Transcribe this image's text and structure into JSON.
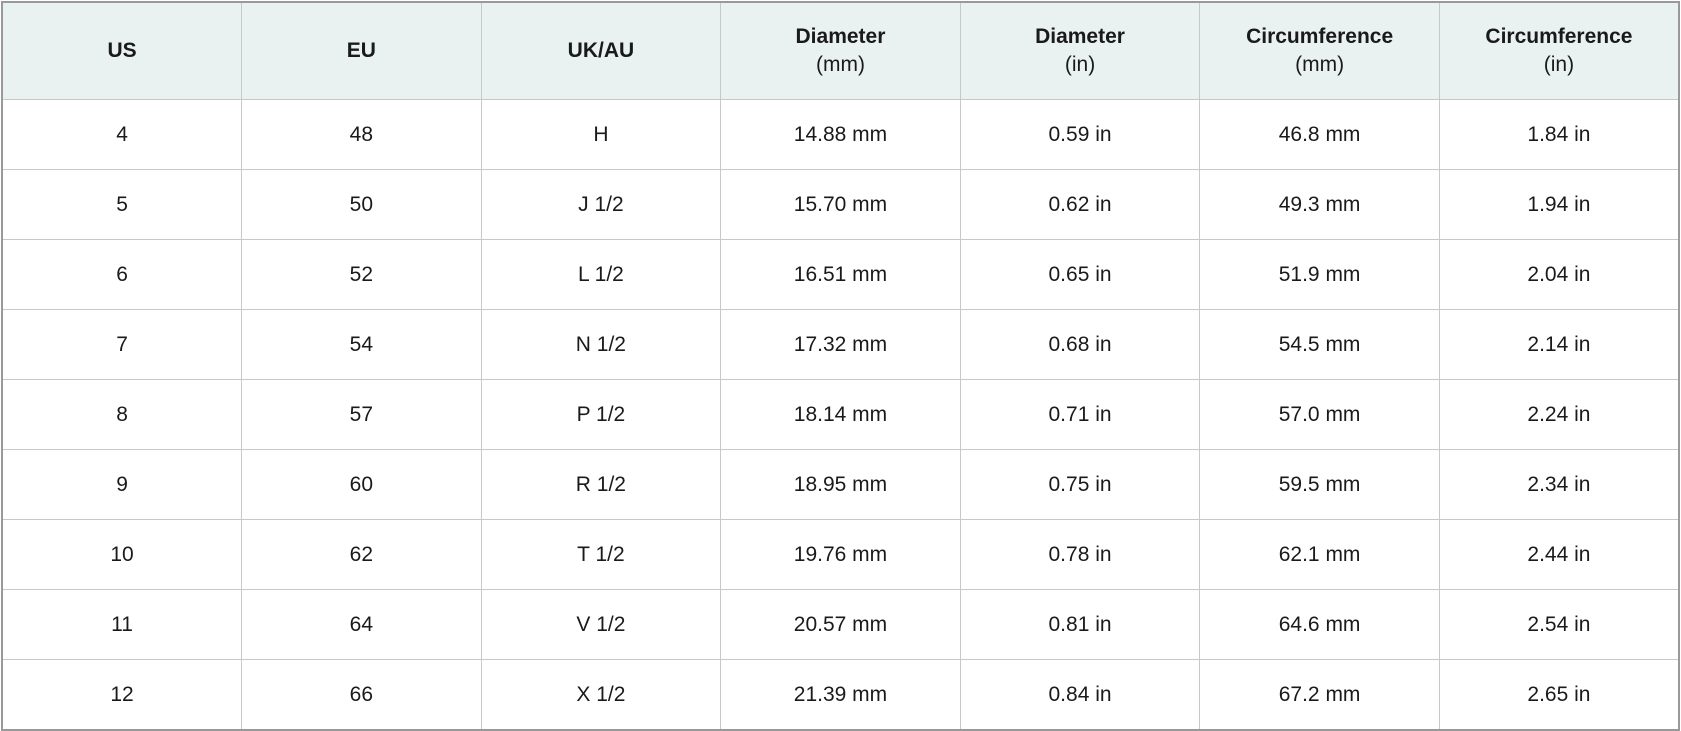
{
  "table": {
    "columns": [
      {
        "title": "US"
      },
      {
        "title": "EU"
      },
      {
        "title": "UK/AU"
      },
      {
        "title": "Diameter",
        "unit": "(mm)"
      },
      {
        "title": "Diameter",
        "unit": "(in)"
      },
      {
        "title": "Circumference",
        "unit": "(mm)"
      },
      {
        "title": "Circumference",
        "unit": "(in)"
      }
    ],
    "rows": [
      [
        "4",
        "48",
        "H",
        "14.88 mm",
        "0.59 in",
        "46.8 mm",
        "1.84 in"
      ],
      [
        "5",
        "50",
        "J 1/2",
        "15.70 mm",
        "0.62 in",
        "49.3 mm",
        "1.94 in"
      ],
      [
        "6",
        "52",
        "L 1/2",
        "16.51 mm",
        "0.65 in",
        "51.9 mm",
        "2.04 in"
      ],
      [
        "7",
        "54",
        "N 1/2",
        "17.32 mm",
        "0.68 in",
        "54.5 mm",
        "2.14 in"
      ],
      [
        "8",
        "57",
        "P 1/2",
        "18.14 mm",
        "0.71 in",
        "57.0 mm",
        "2.24 in"
      ],
      [
        "9",
        "60",
        "R 1/2",
        "18.95 mm",
        "0.75 in",
        "59.5 mm",
        "2.34 in"
      ],
      [
        "10",
        "62",
        "T 1/2",
        "19.76 mm",
        "0.78 in",
        "62.1 mm",
        "2.44 in"
      ],
      [
        "11",
        "64",
        "V 1/2",
        "20.57 mm",
        "0.81 in",
        "64.6 mm",
        "2.54 in"
      ],
      [
        "12",
        "66",
        "X 1/2",
        "21.39 mm",
        "0.84 in",
        "67.2 mm",
        "2.65 in"
      ]
    ]
  }
}
